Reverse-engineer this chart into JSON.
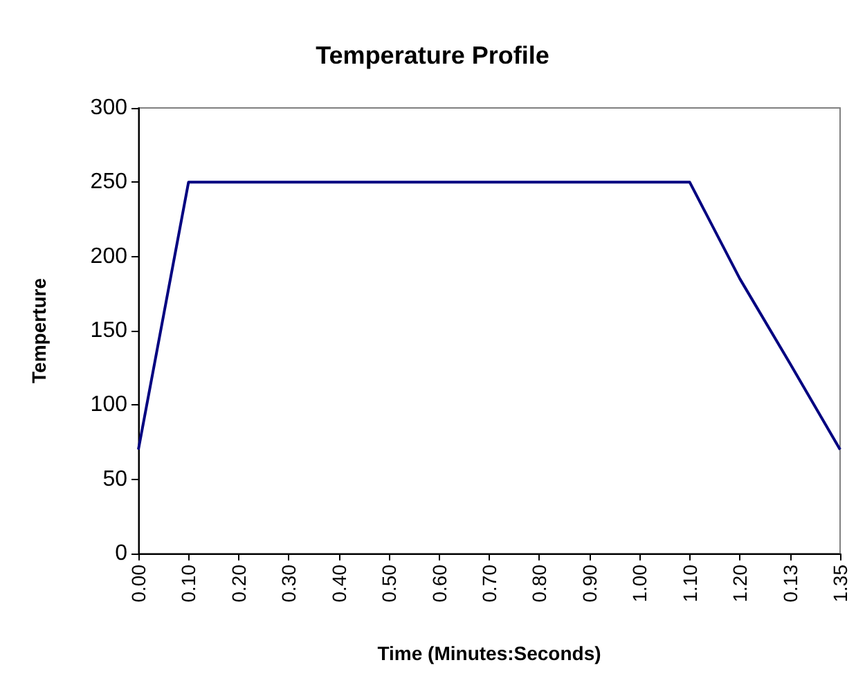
{
  "chart_data": {
    "type": "line",
    "title": "Temperature Profile",
    "xlabel": "Time (Minutes:Seconds)",
    "ylabel": "Temperture",
    "categories": [
      "0.00",
      "0.10",
      "0.20",
      "0.30",
      "0.40",
      "0.50",
      "0.60",
      "0.70",
      "0.80",
      "0.90",
      "1.00",
      "1.10",
      "1.20",
      "0.13",
      "1.35"
    ],
    "series": [
      {
        "color": "#000080",
        "values": [
          70,
          250,
          250,
          250,
          250,
          250,
          250,
          250,
          250,
          250,
          250,
          250,
          185,
          128,
          70
        ]
      }
    ],
    "ylim": [
      0,
      300
    ],
    "yticks": [
      0,
      50,
      100,
      150,
      200,
      250,
      300
    ],
    "grid": false,
    "marker": "none",
    "line_style": "solid"
  }
}
